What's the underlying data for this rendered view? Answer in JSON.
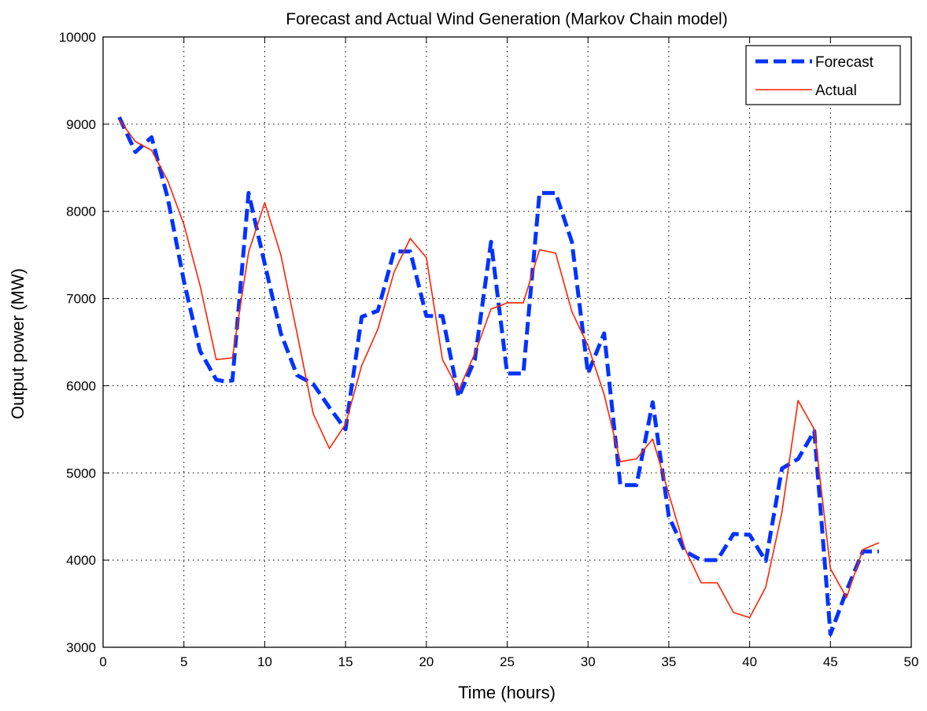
{
  "chart_data": {
    "type": "line",
    "title": "Forecast and Actual Wind Generation (Markov Chain model)",
    "xlabel": "Time (hours)",
    "ylabel": "Output power (MW)",
    "xlim": [
      0,
      50
    ],
    "ylim": [
      3000,
      10000
    ],
    "xticks": [
      0,
      5,
      10,
      15,
      20,
      25,
      30,
      35,
      40,
      45,
      50
    ],
    "yticks": [
      3000,
      4000,
      5000,
      6000,
      7000,
      8000,
      9000,
      10000
    ],
    "grid": true,
    "legend_position": "top-right",
    "series": [
      {
        "name": "Forecast",
        "color": "#0033ff",
        "style": "dashed",
        "x": [
          1,
          2,
          3,
          4,
          5,
          6,
          7,
          7.5,
          8,
          9,
          10,
          11,
          12,
          13,
          14,
          15,
          16,
          17,
          18,
          19,
          20,
          21,
          22,
          23,
          24,
          25,
          26,
          27,
          28,
          29,
          30,
          31,
          32,
          33,
          34,
          35,
          36,
          37,
          38,
          39,
          40,
          41,
          42,
          43,
          44,
          45,
          46,
          47,
          48
        ],
        "y": [
          9080,
          8680,
          8850,
          8150,
          7200,
          6400,
          6070,
          6050,
          6060,
          8210,
          7400,
          6600,
          6120,
          6020,
          5750,
          5500,
          6790,
          6860,
          7540,
          7540,
          6800,
          6800,
          5870,
          6300,
          7650,
          6140,
          6140,
          8210,
          8210,
          7650,
          6140,
          6600,
          4860,
          4860,
          5810,
          4500,
          4100,
          4000,
          4000,
          4300,
          4290,
          3990,
          5050,
          5160,
          5480,
          3150,
          3650,
          4100,
          4100
        ]
      },
      {
        "name": "Actual",
        "color": "#ff2200",
        "style": "solid",
        "x": [
          1,
          2,
          3,
          4,
          5,
          6,
          7,
          8,
          9,
          10,
          11,
          12,
          13,
          14,
          15,
          16,
          17,
          18,
          19,
          20,
          21,
          22,
          23,
          24,
          25,
          26,
          27,
          28,
          29,
          30,
          31,
          32,
          33,
          34,
          35,
          36,
          37,
          38,
          39,
          40,
          41,
          42,
          43,
          44,
          45,
          46,
          47,
          48
        ],
        "y": [
          9050,
          8800,
          8700,
          8350,
          7850,
          7150,
          6300,
          6320,
          7530,
          8100,
          7500,
          6600,
          5680,
          5280,
          5560,
          6230,
          6650,
          7300,
          7690,
          7470,
          6300,
          5950,
          6370,
          6880,
          6950,
          6950,
          7560,
          7520,
          6850,
          6460,
          5900,
          5130,
          5160,
          5390,
          4760,
          4130,
          3740,
          3740,
          3400,
          3340,
          3690,
          4550,
          5830,
          5500,
          3900,
          3570,
          4120,
          4200
        ]
      }
    ]
  }
}
